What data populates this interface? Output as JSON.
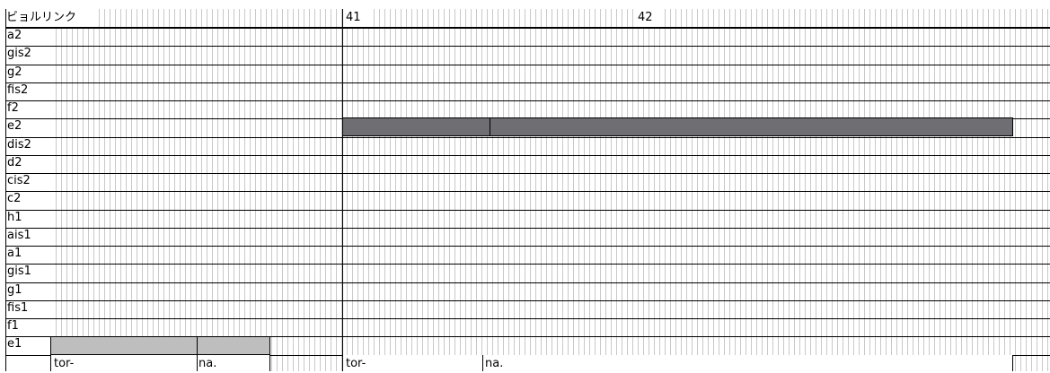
{
  "track_title": "ビョルリンク",
  "measures": [
    "41",
    "42"
  ],
  "pitches": [
    "a2",
    "gis2",
    "g2",
    "fis2",
    "f2",
    "e2",
    "dis2",
    "d2",
    "cis2",
    "c2",
    "h1",
    "ais1",
    "a1",
    "gis1",
    "g1",
    "fis1",
    "f1",
    "e1"
  ],
  "notes": [
    {
      "pitch": "e1",
      "lyric": "tor-"
    },
    {
      "pitch": "e1",
      "lyric": "na."
    },
    {
      "pitch": "e2",
      "lyric": "tor-"
    },
    {
      "pitch": "e2",
      "lyric": "na."
    }
  ],
  "colors": {
    "note_dark": "#6f6f73",
    "note_light": "#bebebe",
    "grid": "#c9c9c9",
    "bar_line": "#000000"
  }
}
